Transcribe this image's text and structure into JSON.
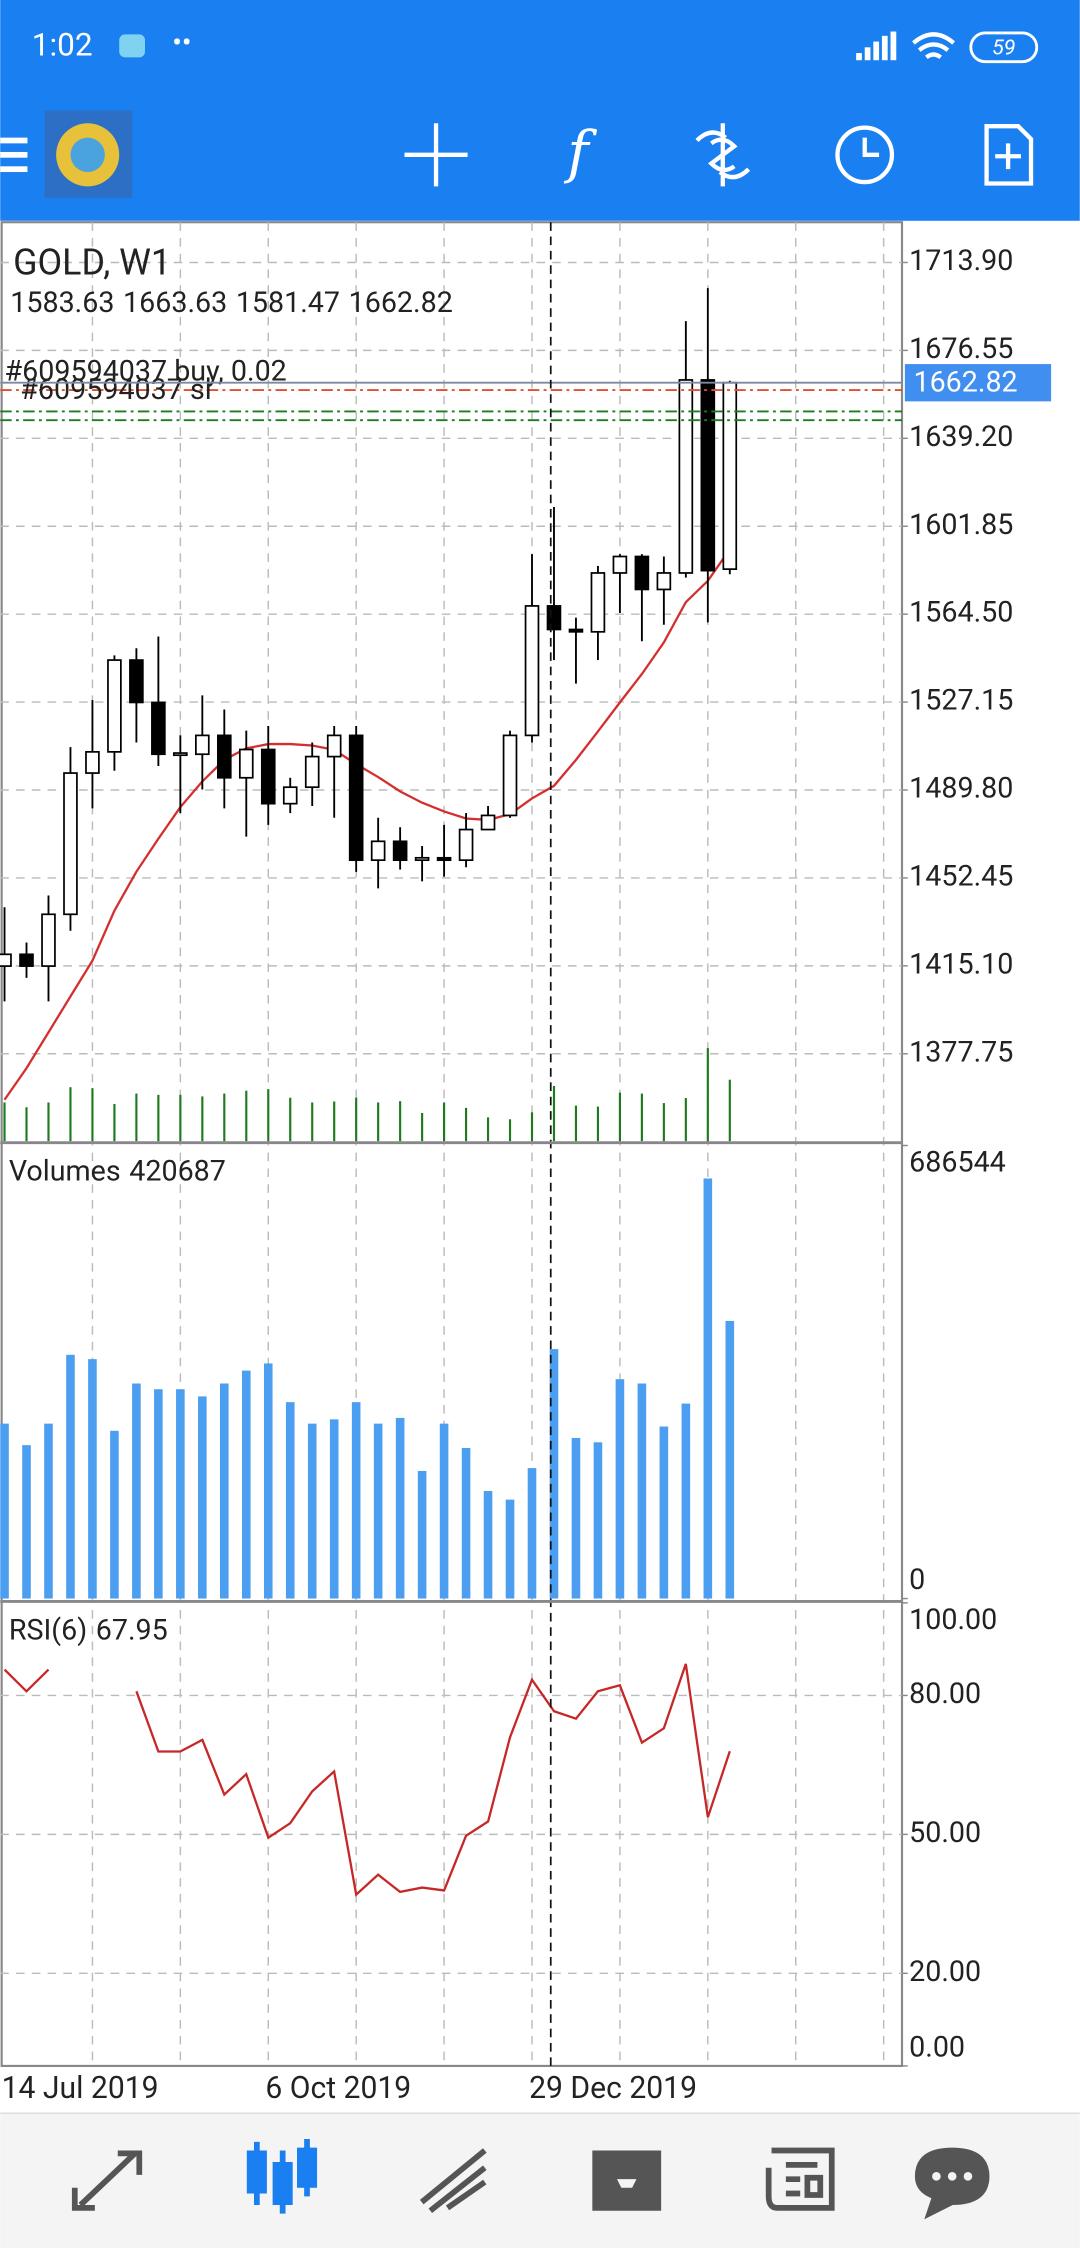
{
  "status_bar": {
    "time": "1:02",
    "battery": "59"
  },
  "chart_data": [
    {
      "type": "candlestick",
      "title": "GOLD, W1",
      "open": [
        1415,
        1420,
        1415,
        1437,
        1497,
        1506,
        1545,
        1527,
        1505,
        1505,
        1513,
        1495,
        1507,
        1484,
        1491,
        1504,
        1513,
        1460,
        1468,
        1460,
        1461,
        1460,
        1473,
        1479,
        1513,
        1568,
        1558,
        1557,
        1582,
        1589,
        1575,
        1582,
        1664,
        1583.63
      ],
      "high": [
        1440,
        1425,
        1445,
        1508,
        1528,
        1547,
        1550,
        1555,
        1513,
        1530,
        1524,
        1515,
        1517,
        1495,
        1510,
        1517,
        1517,
        1478,
        1474,
        1466,
        1475,
        1480,
        1483,
        1515,
        1590,
        1610,
        1563,
        1585,
        1590,
        1590,
        1589,
        1689,
        1703,
        1663.63
      ],
      "low": [
        1400,
        1410,
        1400,
        1430,
        1482,
        1498,
        1510,
        1500,
        1480,
        1490,
        1482,
        1470,
        1475,
        1480,
        1483,
        1478,
        1455,
        1448,
        1456,
        1451,
        1453,
        1457,
        1474,
        1478,
        1510,
        1545,
        1535,
        1545,
        1565,
        1553,
        1560,
        1580,
        1561,
        1581.47
      ],
      "close": [
        1420,
        1415,
        1437,
        1497,
        1506,
        1545,
        1527,
        1505,
        1505.5,
        1513,
        1495,
        1507,
        1484,
        1491,
        1504,
        1513,
        1460,
        1468,
        1460,
        1461,
        1460,
        1473,
        1479,
        1513,
        1568,
        1558,
        1557,
        1582,
        1589,
        1575,
        1582,
        1664,
        1583,
        1662.82
      ],
      "overlays": [
        {
          "color": "#d32f2f",
          "values": [
            1358.2,
            1371.6,
            1386.9,
            1402.1,
            1417.3,
            1438.6,
            1455.1,
            1469.1,
            1482.5,
            1493.5,
            1502.6,
            1507.5,
            1509.3,
            1509.3,
            1508.7,
            1506.9,
            1500.8,
            1495.3,
            1489.2,
            1484.4,
            1480.7,
            1477.7,
            1477.1,
            1479.5,
            1486.2,
            1491.6,
            1502.6,
            1514.7,
            1527.0,
            1539.1,
            1552.5,
            1569.6,
            1578.7,
            1592.1
          ]
        }
      ],
      "order_lines": [
        {
          "label": "#609594037 buy, 0.02",
          "value": 1659.7,
          "color": "#e0502a"
        },
        {
          "label": "#609594037 sl",
          "value": 1650.6,
          "color": "#1b7d1b"
        },
        {
          "value": 1646.9,
          "color": "#1b7d1b"
        }
      ],
      "up_color": "#ffffff",
      "down_color": "#000000",
      "current_price_color": "#3f8ef0",
      "ylim": [
        1340,
        1731
      ],
      "yticks": [
        {
          "value": 1713.9,
          "label": "1713.90"
        },
        {
          "value": 1676.55,
          "label": "1676.55"
        },
        {
          "value": 1639.2,
          "label": "1639.20"
        },
        {
          "value": 1601.85,
          "label": "1601.85"
        },
        {
          "value": 1564.5,
          "label": "1564.50"
        },
        {
          "value": 1527.15,
          "label": "1527.15"
        },
        {
          "value": 1489.8,
          "label": "1489.80"
        },
        {
          "value": 1452.45,
          "label": "1452.45"
        },
        {
          "value": 1415.1,
          "label": "1415.10"
        },
        {
          "value": 1377.75,
          "label": "1377.75"
        }
      ],
      "grid": true
    },
    {
      "type": "bar",
      "title": "Volumes",
      "color": "#4c9ff0",
      "tick_volume_color": "#1f7a1f",
      "values": [
        265057,
        232468,
        265057,
        369342,
        362824,
        254194,
        325890,
        317200,
        317200,
        306337,
        325890,
        345443,
        356306,
        297646,
        265057,
        271575,
        297646,
        265057,
        273748,
        193361,
        265057,
        228123,
        162945,
        149909,
        197707,
        378032,
        243331,
        236813,
        332408,
        325890,
        260712,
        295474,
        636572,
        420687
      ],
      "ylim": [
        0,
        686544
      ],
      "yticks": [
        0,
        686544
      ],
      "grid": false
    },
    {
      "type": "line",
      "title": "RSI(6)",
      "color": "#c62828",
      "categories": [
        "14 Jul 2019",
        null,
        null,
        null,
        null,
        null,
        null,
        null,
        null,
        null,
        null,
        null,
        "6 Oct 2019",
        null,
        null,
        null,
        null,
        null,
        null,
        null,
        null,
        null,
        null,
        null,
        "29 Dec 2019",
        null,
        null,
        null,
        null,
        null,
        null,
        null,
        null,
        null
      ],
      "values": [
        85.6,
        80.9,
        85.6,
        null,
        null,
        null,
        80.9,
        67.9,
        67.9,
        70.4,
        58.6,
        63.0,
        49.3,
        52.4,
        59.3,
        63.6,
        37.0,
        41.3,
        37.6,
        38.5,
        37.9,
        49.7,
        52.8,
        71.0,
        83.4,
        76.6,
        75.0,
        80.9,
        82.2,
        69.8,
        72.9,
        86.8,
        53.7,
        67.95
      ],
      "ylim": [
        0,
        100
      ],
      "yticks": [
        {
          "value": 0,
          "label": "0.00"
        },
        {
          "value": 20,
          "label": "20.00"
        },
        {
          "value": 50,
          "label": "50.00"
        },
        {
          "value": 80,
          "label": "80.00"
        },
        {
          "value": 100,
          "label": "100.00"
        }
      ],
      "grid": true
    }
  ]
}
